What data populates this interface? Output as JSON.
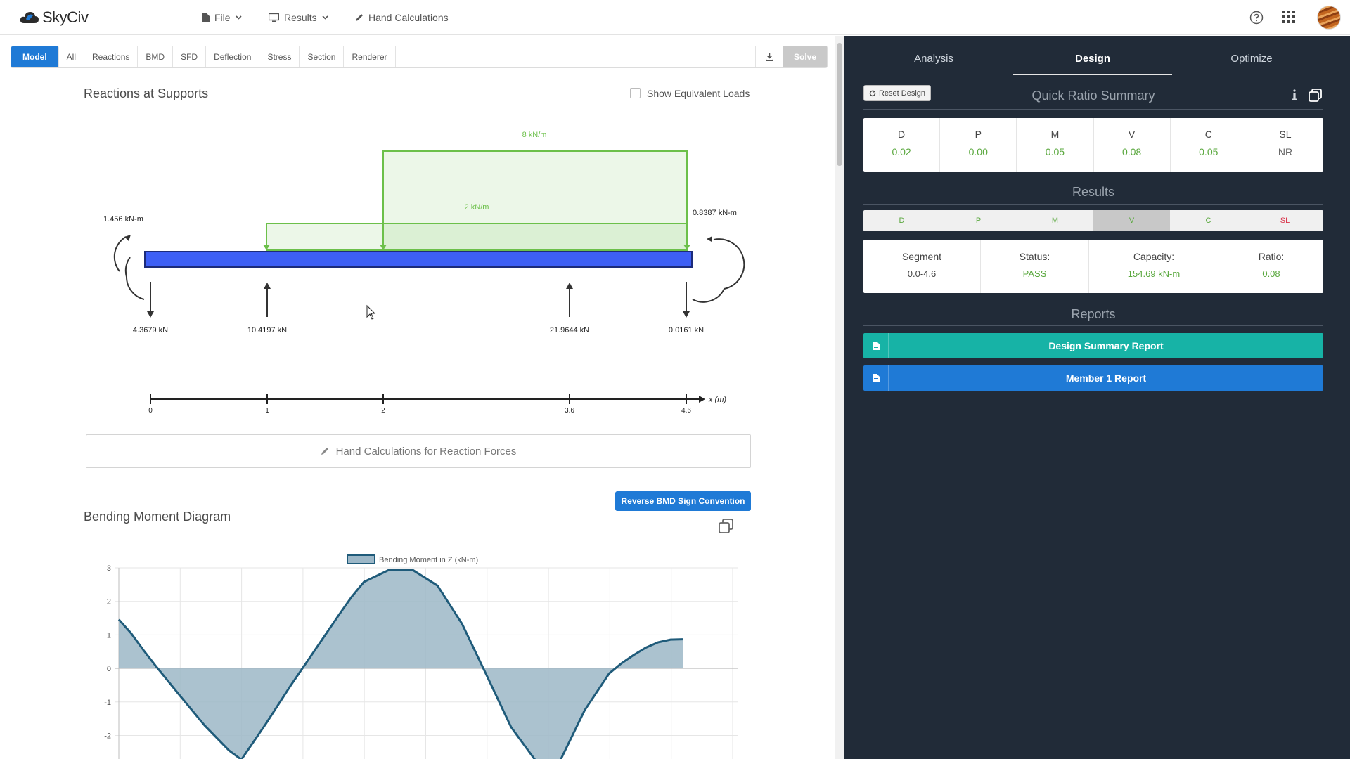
{
  "app": {
    "name": "SkyCiv"
  },
  "topnav": {
    "file_label": "File",
    "results_label": "Results",
    "hand_calc_label": "Hand Calculations"
  },
  "toolbar": {
    "tabs": [
      "Model",
      "All",
      "Reactions",
      "BMD",
      "SFD",
      "Deflection",
      "Stress",
      "Section",
      "Renderer"
    ],
    "active_tab": "Model",
    "solve_label": "Solve"
  },
  "reactions": {
    "title": "Reactions at Supports",
    "show_equivalent_label": "Show Equivalent Loads",
    "show_equivalent_checked": false,
    "loads": [
      {
        "label": "8 kN/m",
        "start": 2,
        "end": 4.6
      },
      {
        "label": "2 kN/m",
        "start": 1,
        "end": 4.6
      }
    ],
    "moments": [
      {
        "label": "1.456 kN-m",
        "x": 0
      },
      {
        "label": "0.8387 kN-m",
        "x": 4.6
      }
    ],
    "reaction_forces": [
      {
        "label": "4.3679 kN",
        "x": 0,
        "direction": "down"
      },
      {
        "label": "10.4197 kN",
        "x": 1,
        "direction": "up"
      },
      {
        "label": "21.9644 kN",
        "x": 3.6,
        "direction": "up"
      },
      {
        "label": "0.0161 kN",
        "x": 4.6,
        "direction": "down"
      }
    ],
    "axis_ticks": [
      "0",
      "1",
      "2",
      "3.6",
      "4.6"
    ],
    "axis_label": "x (m)",
    "hand_calc_button": "Hand Calculations for Reaction Forces"
  },
  "bmd": {
    "title": "Bending Moment Diagram",
    "reverse_button": "Reverse BMD Sign Convention"
  },
  "chart_data": {
    "type": "area",
    "legend": [
      "Bending Moment in Z (kN-m)"
    ],
    "y_ticks": [
      "3",
      "2",
      "1",
      "0",
      "-1",
      "-2"
    ],
    "ylim": [
      -2.7,
      3.3
    ],
    "xlim": [
      0,
      4.6
    ],
    "series": [
      {
        "name": "Bending Moment in Z (kN-m)",
        "x": [
          0,
          0.1,
          0.2,
          0.3,
          0.5,
          0.7,
          0.9,
          1.0,
          1.2,
          1.4,
          1.6,
          1.8,
          1.9,
          2.0,
          2.2,
          2.4,
          2.6,
          2.8,
          3.0,
          3.2,
          3.4,
          3.6,
          3.8,
          4.0,
          4.1,
          4.2,
          4.3,
          4.4,
          4.5,
          4.6
        ],
        "values": [
          1.46,
          1.05,
          0.55,
          0.08,
          -0.82,
          -1.7,
          -2.45,
          -2.72,
          -1.65,
          -0.52,
          0.55,
          1.62,
          2.14,
          2.58,
          2.93,
          2.93,
          2.47,
          1.33,
          -0.2,
          -1.75,
          -2.75,
          -2.75,
          -1.25,
          -0.15,
          0.15,
          0.4,
          0.62,
          0.78,
          0.86,
          0.87
        ]
      }
    ]
  },
  "right_panel": {
    "tabs": [
      "Analysis",
      "Design",
      "Optimize"
    ],
    "active_tab": "Design",
    "reset_label": "Reset Design",
    "quick_ratio_title": "Quick Ratio Summary",
    "ratios": [
      {
        "label": "D",
        "value": "0.02"
      },
      {
        "label": "P",
        "value": "0.00"
      },
      {
        "label": "M",
        "value": "0.05"
      },
      {
        "label": "V",
        "value": "0.08"
      },
      {
        "label": "C",
        "value": "0.05"
      },
      {
        "label": "SL",
        "value": "NR"
      }
    ],
    "results_title": "Results",
    "results_tabs": [
      "D",
      "P",
      "M",
      "V",
      "C",
      "SL"
    ],
    "results_active": "V",
    "results": {
      "segment_label": "Segment",
      "segment_value": "0.0-4.6",
      "status_label": "Status:",
      "status_value": "PASS",
      "capacity_label": "Capacity:",
      "capacity_value": "154.69 kN-m",
      "ratio_label": "Ratio:",
      "ratio_value": "0.08"
    },
    "reports_title": "Reports",
    "reports": [
      {
        "label": "Design Summary Report",
        "color": "#17b3a6"
      },
      {
        "label": "Member 1 Report",
        "color": "#1f7ad6"
      }
    ]
  },
  "colors": {
    "primary": "#1f7ad6",
    "teal": "#17b3a6",
    "beam": "#3d5ff5",
    "load_green": "#6cc04a",
    "pass_green": "#5aa83e",
    "panel_bg": "#212b38",
    "bmd_fill": "#9cb7c7",
    "bmd_stroke": "#1f5b7a"
  }
}
